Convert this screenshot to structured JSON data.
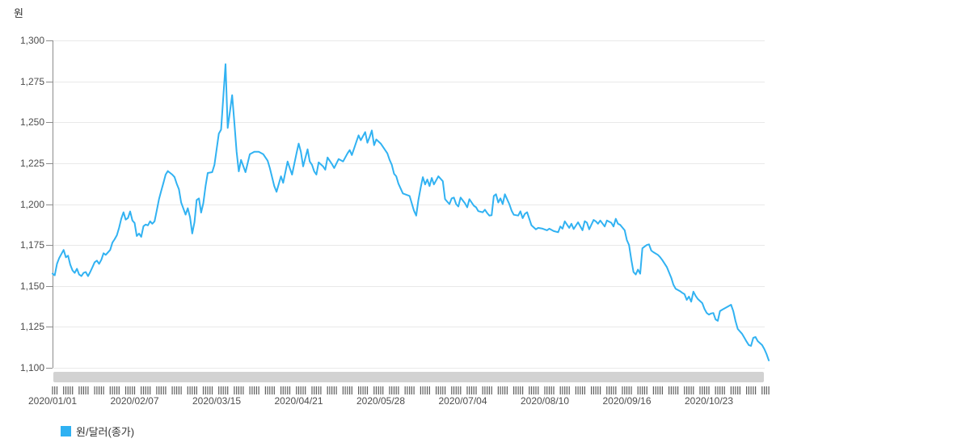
{
  "page": {
    "background": "#ffffff"
  },
  "colors": {
    "line": "#31b2f2",
    "grid": "#e9e9e9",
    "axis": "#8c8c8c",
    "tick_label": "#4d4d4d",
    "scrollbar": "#d2d2d2",
    "tick_strip": "#5f5f5f",
    "legend_swatch": "#2fb1f2"
  },
  "chart": {
    "unit_label": "원",
    "legend": {
      "label": "원/달러(종가)"
    }
  },
  "chart_data": {
    "type": "line",
    "title": "",
    "unit": "원",
    "series_name": "원/달러(종가)",
    "ylabel": "원",
    "xlabel": "",
    "ylim": [
      1100,
      1300
    ],
    "grid": true,
    "legend_position": "bottom-left",
    "y_ticks": [
      {
        "label": "1,300",
        "value": 1300
      },
      {
        "label": "1,275",
        "value": 1275
      },
      {
        "label": "1,250",
        "value": 1250
      },
      {
        "label": "1,225",
        "value": 1225
      },
      {
        "label": "1,200",
        "value": 1200
      },
      {
        "label": "1,175",
        "value": 1175
      },
      {
        "label": "1,150",
        "value": 1150
      },
      {
        "label": "1,125",
        "value": 1125
      },
      {
        "label": "1,100",
        "value": 1100
      }
    ],
    "x_ticks": [
      {
        "label": "2020/01/01",
        "day": 0
      },
      {
        "label": "2020/02/07",
        "day": 37
      },
      {
        "label": "2020/03/15",
        "day": 74
      },
      {
        "label": "2020/04/21",
        "day": 111
      },
      {
        "label": "2020/05/28",
        "day": 148
      },
      {
        "label": "2020/07/04",
        "day": 185
      },
      {
        "label": "2020/08/10",
        "day": 222
      },
      {
        "label": "2020/09/16",
        "day": 259
      },
      {
        "label": "2020/10/23",
        "day": 296
      }
    ],
    "points": [
      [
        0,
        1157.5
      ],
      [
        1,
        1156.5
      ],
      [
        2,
        1163.5
      ],
      [
        3,
        1167
      ],
      [
        5,
        1172
      ],
      [
        6,
        1167.5
      ],
      [
        7,
        1168.5
      ],
      [
        8,
        1163
      ],
      [
        9,
        1159.5
      ],
      [
        10,
        1158
      ],
      [
        11,
        1160.5
      ],
      [
        12,
        1157
      ],
      [
        13,
        1156
      ],
      [
        14,
        1158
      ],
      [
        15,
        1158.5
      ],
      [
        16,
        1156
      ],
      [
        17,
        1158.5
      ],
      [
        18,
        1161.5
      ],
      [
        19,
        1164.5
      ],
      [
        20,
        1165.5
      ],
      [
        21,
        1163.5
      ],
      [
        22,
        1166
      ],
      [
        23,
        1170
      ],
      [
        24,
        1169
      ],
      [
        26,
        1172
      ],
      [
        27,
        1176.5
      ],
      [
        28,
        1178.5
      ],
      [
        29,
        1181
      ],
      [
        30,
        1185.5
      ],
      [
        31,
        1191
      ],
      [
        32,
        1195
      ],
      [
        33,
        1190.5
      ],
      [
        34,
        1191.5
      ],
      [
        35,
        1195.5
      ],
      [
        36,
        1190
      ],
      [
        37,
        1188.5
      ],
      [
        38,
        1180.5
      ],
      [
        39,
        1182
      ],
      [
        40,
        1180
      ],
      [
        41,
        1186.5
      ],
      [
        42,
        1187.5
      ],
      [
        43,
        1187
      ],
      [
        44,
        1189.5
      ],
      [
        45,
        1188
      ],
      [
        46,
        1189.5
      ],
      [
        47,
        1196
      ],
      [
        48,
        1203
      ],
      [
        49,
        1208
      ],
      [
        50,
        1213
      ],
      [
        51,
        1218
      ],
      [
        52,
        1220.2
      ],
      [
        54,
        1218
      ],
      [
        55,
        1216.5
      ],
      [
        56,
        1212.5
      ],
      [
        57,
        1209
      ],
      [
        58,
        1201
      ],
      [
        60,
        1193.6
      ],
      [
        61,
        1197.5
      ],
      [
        62,
        1192
      ],
      [
        63,
        1182
      ],
      [
        64,
        1189
      ],
      [
        65,
        1202.5
      ],
      [
        66,
        1203.5
      ],
      [
        67,
        1194.8
      ],
      [
        68,
        1200.5
      ],
      [
        69,
        1211
      ],
      [
        70,
        1219
      ],
      [
        72,
        1219.5
      ],
      [
        73,
        1224
      ],
      [
        75,
        1243
      ],
      [
        76,
        1245.5
      ],
      [
        78,
        1285.5
      ],
      [
        79,
        1246.5
      ],
      [
        81,
        1266.5
      ],
      [
        82,
        1250
      ],
      [
        83,
        1232
      ],
      [
        84,
        1220
      ],
      [
        85,
        1227
      ],
      [
        87,
        1219.5
      ],
      [
        89,
        1230.5
      ],
      [
        91,
        1232
      ],
      [
        93,
        1232
      ],
      [
        95,
        1230.5
      ],
      [
        97,
        1226.5
      ],
      [
        98,
        1222
      ],
      [
        100,
        1211
      ],
      [
        101,
        1207.5
      ],
      [
        103,
        1217
      ],
      [
        104,
        1213
      ],
      [
        106,
        1226
      ],
      [
        107,
        1222
      ],
      [
        108,
        1218
      ],
      [
        110,
        1231
      ],
      [
        111,
        1237
      ],
      [
        112,
        1232
      ],
      [
        113,
        1223
      ],
      [
        115,
        1233.5
      ],
      [
        116,
        1226
      ],
      [
        117,
        1224
      ],
      [
        118,
        1220
      ],
      [
        119,
        1218
      ],
      [
        120,
        1225.5
      ],
      [
        122,
        1223
      ],
      [
        123,
        1221
      ],
      [
        124,
        1228.5
      ],
      [
        126,
        1224.5
      ],
      [
        127,
        1222
      ],
      [
        129,
        1227.5
      ],
      [
        131,
        1226
      ],
      [
        133,
        1231
      ],
      [
        134,
        1233
      ],
      [
        135,
        1230
      ],
      [
        137,
        1238
      ],
      [
        138,
        1242
      ],
      [
        139,
        1239
      ],
      [
        141,
        1244
      ],
      [
        142,
        1237.5
      ],
      [
        143,
        1241
      ],
      [
        144,
        1245
      ],
      [
        145,
        1236
      ],
      [
        146,
        1239.5
      ],
      [
        148,
        1237
      ],
      [
        151,
        1231
      ],
      [
        152,
        1227
      ],
      [
        153,
        1224
      ],
      [
        154,
        1218.5
      ],
      [
        155,
        1217
      ],
      [
        156,
        1212.5
      ],
      [
        158,
        1206.5
      ],
      [
        161,
        1205
      ],
      [
        163,
        1196
      ],
      [
        164,
        1193
      ],
      [
        165,
        1202.5
      ],
      [
        166,
        1210
      ],
      [
        167,
        1216.5
      ],
      [
        168,
        1212
      ],
      [
        169,
        1215
      ],
      [
        170,
        1211
      ],
      [
        171,
        1216
      ],
      [
        172,
        1212
      ],
      [
        174,
        1217
      ],
      [
        176,
        1214
      ],
      [
        177,
        1203
      ],
      [
        178,
        1201.5
      ],
      [
        179,
        1200
      ],
      [
        180,
        1203.5
      ],
      [
        181,
        1204
      ],
      [
        182,
        1200
      ],
      [
        183,
        1198.5
      ],
      [
        184,
        1204
      ],
      [
        186,
        1200.5
      ],
      [
        187,
        1198
      ],
      [
        188,
        1203
      ],
      [
        190,
        1199
      ],
      [
        191,
        1198
      ],
      [
        192,
        1195.7
      ],
      [
        194,
        1195
      ],
      [
        195,
        1196.6
      ],
      [
        196,
        1194.5
      ],
      [
        197,
        1193
      ],
      [
        198,
        1193.2
      ],
      [
        199,
        1205
      ],
      [
        200,
        1206
      ],
      [
        201,
        1201
      ],
      [
        202,
        1203.5
      ],
      [
        203,
        1200
      ],
      [
        204,
        1206
      ],
      [
        206,
        1200
      ],
      [
        207,
        1196
      ],
      [
        208,
        1193.5
      ],
      [
        210,
        1193
      ],
      [
        211,
        1195.6
      ],
      [
        212,
        1191.4
      ],
      [
        213,
        1194
      ],
      [
        214,
        1195
      ],
      [
        216,
        1187
      ],
      [
        218,
        1184.6
      ],
      [
        219,
        1185.5
      ],
      [
        221,
        1185
      ],
      [
        223,
        1184
      ],
      [
        224,
        1185
      ],
      [
        226,
        1183.5
      ],
      [
        228,
        1182.8
      ],
      [
        229,
        1186.3
      ],
      [
        230,
        1185
      ],
      [
        231,
        1189.5
      ],
      [
        233,
        1185.5
      ],
      [
        234,
        1188
      ],
      [
        235,
        1184.8
      ],
      [
        237,
        1188.9
      ],
      [
        239,
        1184
      ],
      [
        240,
        1189.6
      ],
      [
        241,
        1188.7
      ],
      [
        242,
        1184.6
      ],
      [
        244,
        1190.3
      ],
      [
        245,
        1189.5
      ],
      [
        246,
        1188
      ],
      [
        247,
        1190
      ],
      [
        249,
        1186.3
      ],
      [
        250,
        1190
      ],
      [
        252,
        1188.6
      ],
      [
        253,
        1186.3
      ],
      [
        254,
        1191
      ],
      [
        255,
        1188
      ],
      [
        256,
        1187.3
      ],
      [
        258,
        1184
      ],
      [
        259,
        1178
      ],
      [
        260,
        1175
      ],
      [
        261,
        1166
      ],
      [
        262,
        1158.5
      ],
      [
        263,
        1157
      ],
      [
        264,
        1160
      ],
      [
        265,
        1157.5
      ],
      [
        266,
        1173
      ],
      [
        267,
        1174
      ],
      [
        268,
        1175
      ],
      [
        269,
        1175.4
      ],
      [
        270,
        1171.6
      ],
      [
        271,
        1170.6
      ],
      [
        273,
        1169
      ],
      [
        274,
        1167.6
      ],
      [
        275,
        1165.8
      ],
      [
        277,
        1161.6
      ],
      [
        279,
        1155
      ],
      [
        280,
        1150.7
      ],
      [
        281,
        1148.3
      ],
      [
        283,
        1146.8
      ],
      [
        284,
        1145.8
      ],
      [
        285,
        1145
      ],
      [
        286,
        1141.5
      ],
      [
        287,
        1143.5
      ],
      [
        288,
        1140.4
      ],
      [
        289,
        1146.5
      ],
      [
        290,
        1144
      ],
      [
        291,
        1142
      ],
      [
        293,
        1139.5
      ],
      [
        294,
        1136
      ],
      [
        295,
        1133.5
      ],
      [
        296,
        1132.5
      ],
      [
        297,
        1133.2
      ],
      [
        298,
        1133.5
      ],
      [
        299,
        1129.6
      ],
      [
        300,
        1128.7
      ],
      [
        301,
        1134.6
      ],
      [
        302,
        1135.5
      ],
      [
        304,
        1137
      ],
      [
        306,
        1138.5
      ],
      [
        307,
        1134.5
      ],
      [
        308,
        1128.6
      ],
      [
        309,
        1123.7
      ],
      [
        311,
        1120.7
      ],
      [
        312,
        1118.3
      ],
      [
        313,
        1116
      ],
      [
        314,
        1113.9
      ],
      [
        315,
        1113.4
      ],
      [
        316,
        1118.3
      ],
      [
        317,
        1118.8
      ],
      [
        318,
        1116.3
      ],
      [
        320,
        1113.9
      ],
      [
        321,
        1111.4
      ],
      [
        322,
        1108.4
      ],
      [
        323,
        1104.5
      ]
    ]
  }
}
